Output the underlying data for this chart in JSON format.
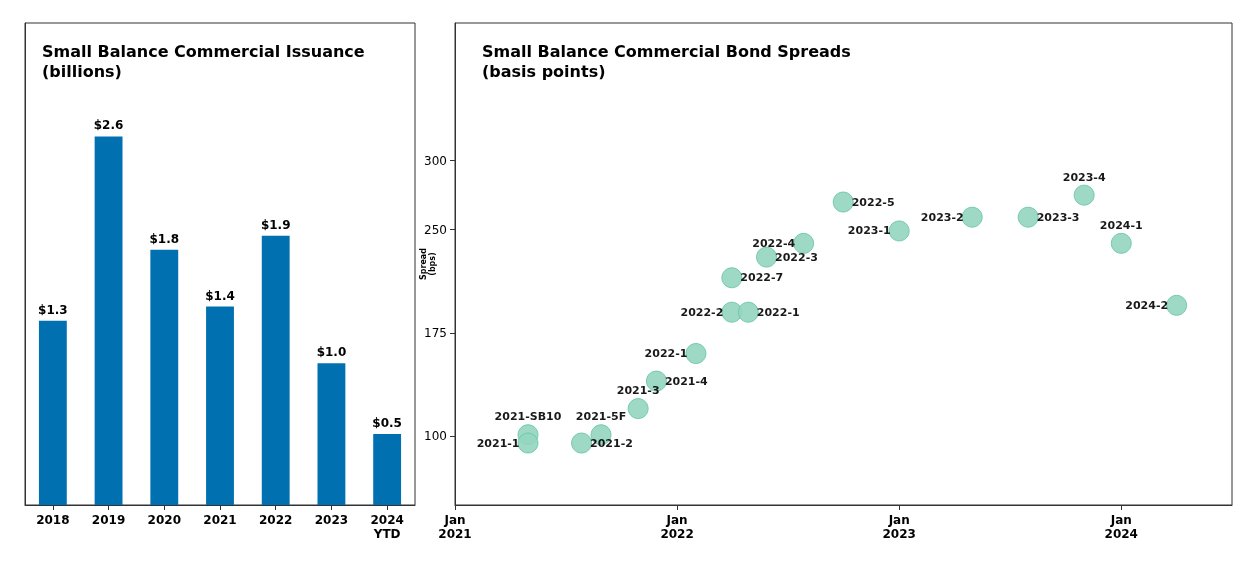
{
  "chart_data": [
    {
      "type": "bar",
      "title": "Small Balance Commercial Issuance\n(billions)",
      "categories": [
        "2018",
        "2019",
        "2020",
        "2021",
        "2022",
        "2023",
        "2024\nYTD"
      ],
      "values": [
        1.3,
        2.6,
        1.8,
        1.4,
        1.9,
        1.0,
        0.5
      ],
      "value_labels": [
        "$1.3",
        "$2.6",
        "$1.8",
        "$1.4",
        "$1.9",
        "$1.0",
        "$0.5"
      ],
      "color": "#0070b0",
      "ylim": [
        0,
        3.4
      ],
      "tick_labels": "x"
    },
    {
      "type": "scatter",
      "title": "Small Balance Commercial Bond Spreads\n(basis points)",
      "ylabel": "Spread\n(bps)",
      "xlim": [
        "2021-01-01",
        "2024-07-01"
      ],
      "xticks": [
        {
          "value": "2021-01-01",
          "label": "Jan\n2021"
        },
        {
          "value": "2022-01-01",
          "label": "Jan\n2022"
        },
        {
          "value": "2023-01-01",
          "label": "Jan\n2023"
        },
        {
          "value": "2024-01-01",
          "label": "Jan\n2024"
        }
      ],
      "ylim": [
        50,
        400
      ],
      "yticks": [
        100,
        175,
        250,
        300
      ],
      "marker": "circle",
      "series": [
        {
          "color": "#93d5c0",
          "x": [
            "2021-05-01",
            "2021-05-01",
            "2021-07-28",
            "2021-08-29",
            "2021-10-29",
            "2021-11-28",
            "2022-02-01",
            "2022-04-01",
            "2022-04-28",
            "2022-04-01",
            "2022-05-28",
            "2022-07-28",
            "2022-10-01",
            "2023-01-01",
            "2023-05-01",
            "2023-08-01",
            "2023-11-01",
            "2024-01-01",
            "2024-04-01"
          ],
          "values": [
            101,
            95,
            95,
            101,
            120,
            140,
            160,
            190,
            190,
            215,
            230,
            240,
            270,
            249,
            259,
            259,
            275,
            240,
            195
          ],
          "value_labels": [
            "2021-SB10",
            "2021-1",
            "2021-2",
            "2021-5F",
            "2021-3",
            "2021-4",
            "2022-1",
            "2022-2",
            "2022-1",
            "2022-7",
            "2022-3",
            "2022-4",
            "2022-5",
            "2023-1",
            "2023-2",
            "2023-3",
            "2023-4",
            "2024-1",
            "2024-2"
          ]
        }
      ]
    }
  ]
}
